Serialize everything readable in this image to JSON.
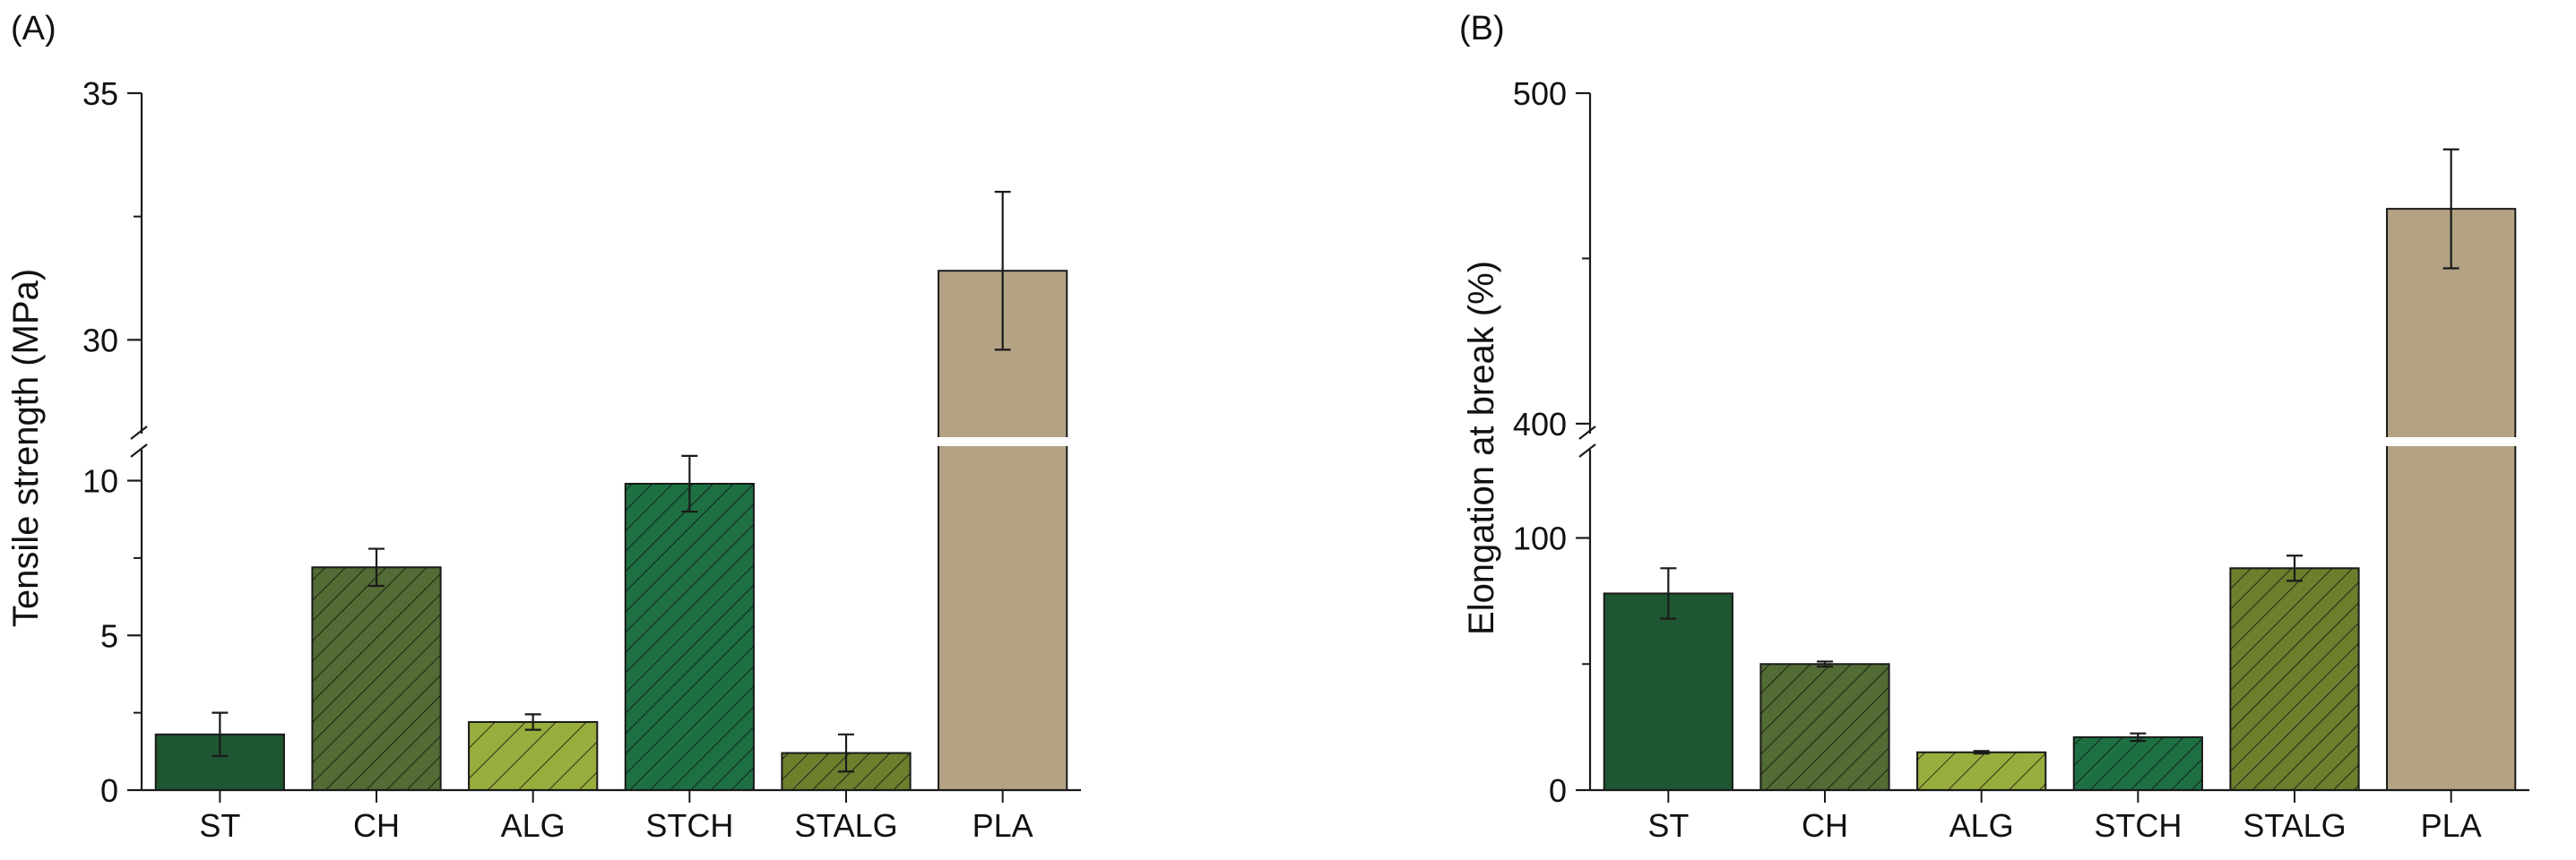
{
  "chart_data": [
    {
      "type": "bar",
      "panel_label": "(A)",
      "ylabel": "Tensile strength (MPa)",
      "categories": [
        "ST",
        "CH",
        "ALG",
        "STCH",
        "STALG",
        "PLA"
      ],
      "values": [
        1.8,
        7.2,
        2.2,
        9.9,
        1.2,
        31.4
      ],
      "errors": [
        0.7,
        0.6,
        0.25,
        0.9,
        0.6,
        1.6
      ],
      "broken_axis": {
        "lower_range": [
          0,
          11
        ],
        "upper_range": [
          28.1,
          35
        ]
      },
      "yticks": [
        {
          "value": 0,
          "label": "0"
        },
        {
          "value": 5,
          "label": "5"
        },
        {
          "value": 10,
          "label": "10"
        },
        {
          "value": 30,
          "label": "30"
        },
        {
          "value": 35,
          "label": "35"
        }
      ],
      "yticks_minor": [
        2.5,
        7.5,
        32.5
      ],
      "grid": false,
      "bar_fills": [
        {
          "color": "#1e5631",
          "hatch": "none"
        },
        {
          "color": "#536b34",
          "hatch": "dense"
        },
        {
          "color": "#97ad3d",
          "hatch": "sparse"
        },
        {
          "color": "#1e7043",
          "hatch": "dense"
        },
        {
          "color": "#6b7f2d",
          "hatch": "dense"
        },
        {
          "color": "#b3a384",
          "hatch": "none"
        }
      ]
    },
    {
      "type": "bar",
      "panel_label": "(B)",
      "ylabel": "Elongation at break (%)",
      "categories": [
        "ST",
        "CH",
        "ALG",
        "STCH",
        "STALG",
        "PLA"
      ],
      "values": [
        78,
        50,
        15,
        21,
        88,
        465
      ],
      "errors": [
        10,
        1,
        0.5,
        1.5,
        5,
        18
      ],
      "broken_axis": {
        "lower_range": [
          0,
          135
        ],
        "upper_range": [
          397,
          500
        ]
      },
      "yticks": [
        {
          "value": 0,
          "label": "0"
        },
        {
          "value": 100,
          "label": "100"
        },
        {
          "value": 400,
          "label": "400"
        },
        {
          "value": 500,
          "label": "500"
        }
      ],
      "yticks_minor": [
        50,
        450
      ],
      "grid": false,
      "bar_fills": [
        {
          "color": "#1e5631",
          "hatch": "none"
        },
        {
          "color": "#536b34",
          "hatch": "dense"
        },
        {
          "color": "#97ad3d",
          "hatch": "sparse"
        },
        {
          "color": "#1e7043",
          "hatch": "dense"
        },
        {
          "color": "#6b7f2d",
          "hatch": "dense"
        },
        {
          "color": "#b3a384",
          "hatch": "none"
        }
      ]
    }
  ]
}
